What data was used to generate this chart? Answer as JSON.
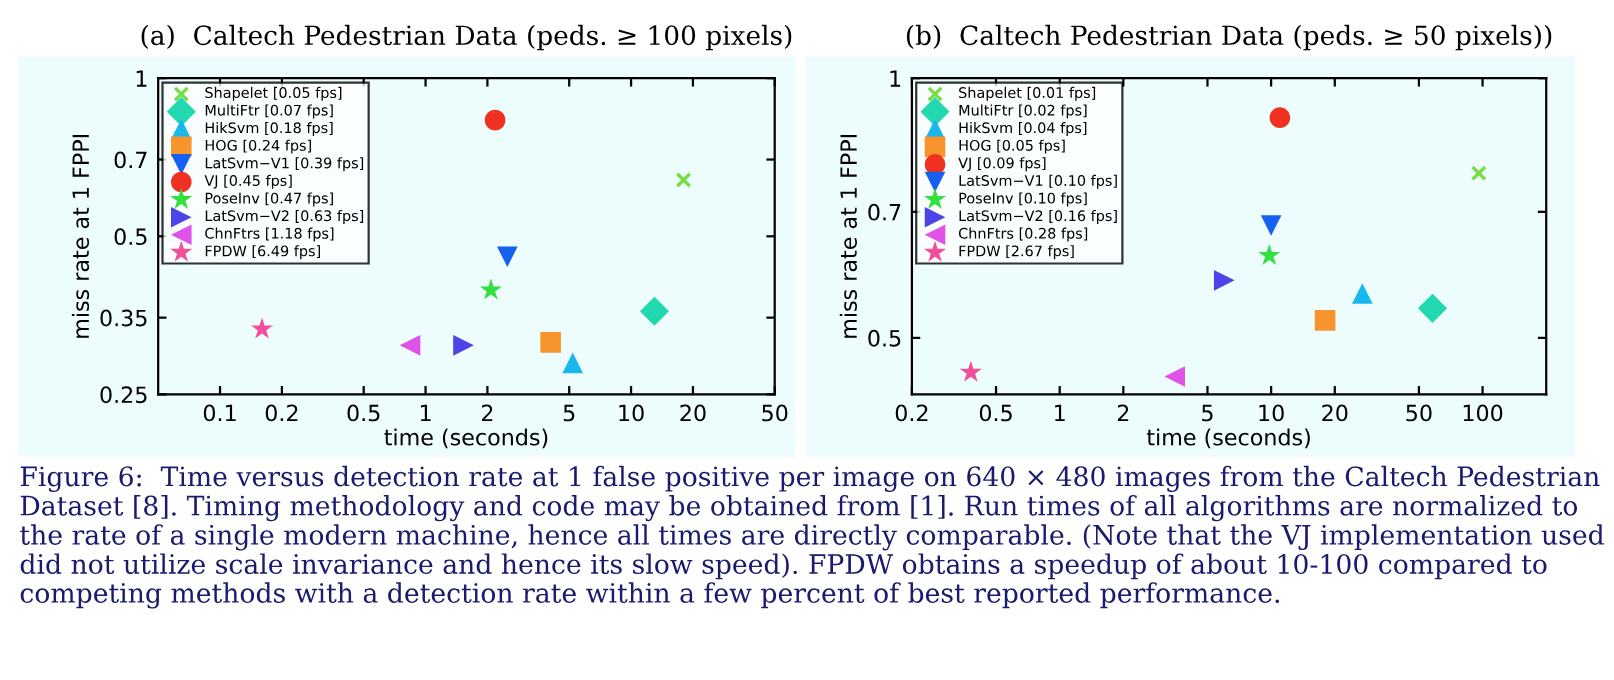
{
  "chart_data": [
    {
      "type": "scatter",
      "title": "(a)  Caltech Pedestrian Data (peds. ≥ 100 pixels)",
      "xlabel": "time (seconds)",
      "ylabel": "miss rate at 1 FPPI",
      "log": "xy",
      "legend": "top left",
      "xlim": [
        0.05,
        50
      ],
      "xticks": [
        0.1,
        0.2,
        0.5,
        1,
        2,
        5,
        10,
        20,
        50
      ],
      "ylim": [
        0.25,
        1
      ],
      "yticks": [
        0.25,
        0.35,
        0.5,
        0.7,
        1
      ],
      "series": [
        {
          "name": "Shapelet [0.05 fps]",
          "color": "#77dd44",
          "marker": "cross",
          "x": [
            18
          ],
          "values": [
            0.64
          ]
        },
        {
          "name": "MultiFtr [0.07 fps]",
          "color": "#22d8b0",
          "marker": "diamond",
          "x": [
            13
          ],
          "values": [
            0.36
          ]
        },
        {
          "name": "HikSvm [0.18 fps]",
          "color": "#18b8ec",
          "marker": "triangle",
          "x": [
            5.2
          ],
          "values": [
            0.287
          ]
        },
        {
          "name": "HOG [0.24 fps]",
          "color": "#f7942c",
          "marker": "square",
          "x": [
            4.06
          ],
          "values": [
            0.314
          ]
        },
        {
          "name": "LatSvm−V1 [0.39 fps]",
          "color": "#1560f0",
          "marker": "triangle-down",
          "x": [
            2.5
          ],
          "values": [
            0.457
          ]
        },
        {
          "name": "VJ [0.45 fps]",
          "color": "#f03020",
          "marker": "circle",
          "x": [
            2.18
          ],
          "values": [
            0.832
          ]
        },
        {
          "name": "PoseInv [0.47 fps]",
          "color": "#33e040",
          "marker": "star",
          "x": [
            2.08
          ],
          "values": [
            0.395
          ]
        },
        {
          "name": "LatSvm−V2 [0.63 fps]",
          "color": "#4d44e8",
          "marker": "triangle-right",
          "x": [
            1.53
          ],
          "values": [
            0.31
          ]
        },
        {
          "name": "ChnFtrs [1.18 fps]",
          "color": "#e052e8",
          "marker": "triangle-left",
          "x": [
            0.84
          ],
          "values": [
            0.31
          ]
        },
        {
          "name": "FPDW [6.49 fps]",
          "color": "#f0509a",
          "marker": "star",
          "x": [
            0.16
          ],
          "values": [
            0.333
          ]
        }
      ],
      "annotations": [
        "Figure 6:  Time versus detection rate at 1 false positive per image on 640 × 480 images from the Caltech Pedestrian Dataset [8]. Timing methodology and code may be obtained from [1]. Run times of all algorithms are normalized to the rate of a single modern machine, hence all times are directly comparable. (Note that the VJ implementation used did not utilize scale invariance and hence its slow speed). FPDW obtains a speedup of about 10-100 compared to competing methods with a detection rate within a few percent of best reported performance."
      ]
    },
    {
      "type": "scatter",
      "title": "(b)  Caltech Pedestrian Data (peds. ≥ 50 pixels))",
      "xlabel": "time (seconds)",
      "ylabel": "miss rate at 1 FPPI",
      "log": "xy",
      "legend": "top left",
      "xlim": [
        0.2,
        200
      ],
      "xticks": [
        0.2,
        0.5,
        1,
        2,
        5,
        10,
        20,
        50,
        100
      ],
      "ylim": [
        0.43,
        1
      ],
      "yticks": [
        0.5,
        0.7,
        1
      ],
      "series": [
        {
          "name": "Shapelet [0.01 fps]",
          "color": "#77dd44",
          "marker": "cross",
          "x": [
            96
          ],
          "values": [
            0.776
          ]
        },
        {
          "name": "MultiFtr [0.02 fps]",
          "color": "#22d8b0",
          "marker": "diamond",
          "x": [
            58
          ],
          "values": [
            0.541
          ]
        },
        {
          "name": "HikSvm [0.04 fps]",
          "color": "#18b8ec",
          "marker": "triangle",
          "x": [
            27
          ],
          "values": [
            0.563
          ]
        },
        {
          "name": "HOG [0.05 fps]",
          "color": "#f7942c",
          "marker": "square",
          "x": [
            18
          ],
          "values": [
            0.524
          ]
        },
        {
          "name": "VJ [0.09 fps]",
          "color": "#f03020",
          "marker": "circle",
          "x": [
            11
          ],
          "values": [
            0.9
          ]
        },
        {
          "name": "LatSvm−V1 [0.10 fps]",
          "color": "#1560f0",
          "marker": "triangle-down",
          "x": [
            10
          ],
          "values": [
            0.675
          ]
        },
        {
          "name": "PoseInv [0.10 fps]",
          "color": "#33e040",
          "marker": "star",
          "x": [
            9.8
          ],
          "values": [
            0.623
          ]
        },
        {
          "name": "LatSvm−V2 [0.16 fps]",
          "color": "#4d44e8",
          "marker": "triangle-right",
          "x": [
            6.0
          ],
          "values": [
            0.583
          ]
        },
        {
          "name": "ChnFtrs [0.28 fps]",
          "color": "#e052e8",
          "marker": "triangle-left",
          "x": [
            3.5
          ],
          "values": [
            0.451
          ]
        },
        {
          "name": "FPDW [2.67 fps]",
          "color": "#f0509a",
          "marker": "star",
          "x": [
            0.38
          ],
          "values": [
            0.456
          ]
        }
      ]
    }
  ]
}
